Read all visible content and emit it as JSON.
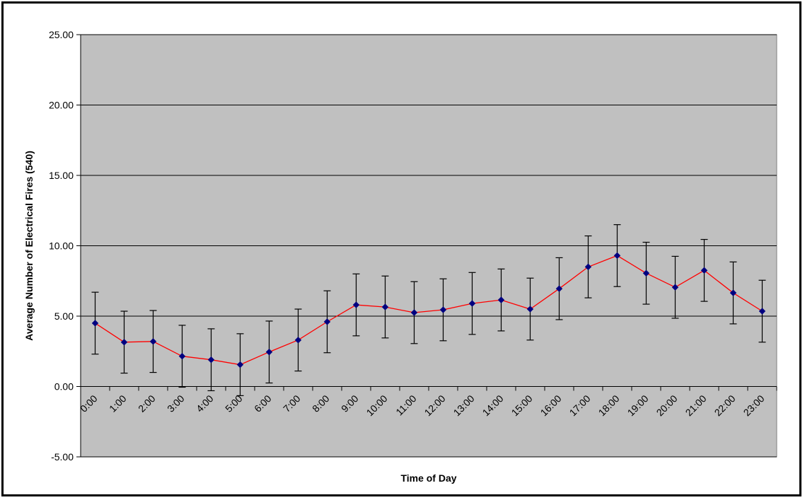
{
  "chart_data": {
    "type": "line",
    "title": "",
    "xlabel": "Time of Day",
    "ylabel": "Average Number of Electrical Fires (540)",
    "categories": [
      "0:00",
      "1:00",
      "2:00",
      "3:00",
      "4:00",
      "5:00",
      "6:00",
      "7:00",
      "8:00",
      "9:00",
      "10:00",
      "11:00",
      "12:00",
      "13:00",
      "14:00",
      "15:00",
      "16:00",
      "17:00",
      "18:00",
      "19:00",
      "20:00",
      "21:00",
      "22:00",
      "23:00"
    ],
    "series": [
      {
        "values": [
          4.5,
          3.15,
          3.2,
          2.15,
          1.9,
          1.55,
          2.45,
          3.3,
          4.6,
          5.8,
          5.65,
          5.25,
          5.45,
          5.9,
          6.15,
          5.5,
          6.95,
          8.5,
          9.3,
          8.05,
          7.05,
          8.25,
          6.65,
          5.35
        ],
        "error": [
          2.2,
          2.2,
          2.2,
          2.2,
          2.2,
          2.2,
          2.2,
          2.2,
          2.2,
          2.2,
          2.2,
          2.2,
          2.2,
          2.2,
          2.2,
          2.2,
          2.2,
          2.2,
          2.2,
          2.2,
          2.2,
          2.2,
          2.2,
          2.2
        ],
        "line_color": "#ff0000",
        "marker_color": "#000080"
      }
    ],
    "ylim": [
      -5,
      25
    ],
    "yticks": [
      "25.00",
      "20.00",
      "15.00",
      "10.00",
      "5.00",
      "0.00",
      "-5.00"
    ],
    "grid": true,
    "plot_background": "#c0c0c0",
    "legend": "none"
  }
}
